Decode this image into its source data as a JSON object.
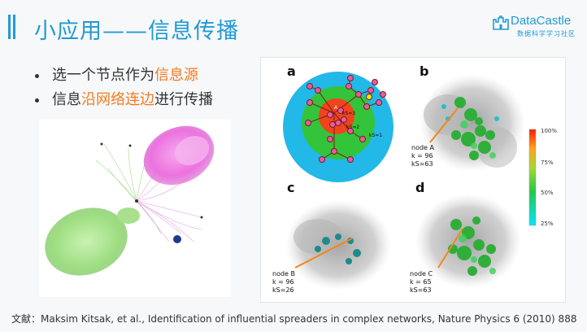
{
  "header": {
    "title": "小应用——信息传播",
    "logo_main": "DataCastle",
    "logo_sub": "数据科学学习社区"
  },
  "bullets": [
    {
      "pre": "选一个节点作为",
      "highlight": "信息源",
      "post": ""
    },
    {
      "pre": "信息",
      "highlight": "沿网络连边",
      "post": "进行传播"
    }
  ],
  "figure": {
    "panel_labels": [
      "a",
      "b",
      "c",
      "d"
    ],
    "shells": {
      "ks3": "kS=3",
      "ks2": "kS=2",
      "ks1": "kS=1"
    },
    "node_a": "A",
    "node_b_label": "B",
    "annot_b": [
      "node A",
      "k = 96",
      "kS=63"
    ],
    "annot_c": [
      "node B",
      "k = 96",
      "kS=26"
    ],
    "annot_d": [
      "node C",
      "k = 65",
      "kS=63"
    ],
    "colorbar": [
      "100%",
      "75%",
      "50%",
      "25%"
    ]
  },
  "colors": {
    "accent": "#1f9ad6",
    "highlight": "#f07c24",
    "green_cluster": "#a6e28a",
    "pink_cluster": "#f07ee6"
  },
  "footer": {
    "citation": "文献：Maksim Kitsak, et al., Identification of influential spreaders in complex networks, Nature Physics 6 (2010) 888"
  }
}
